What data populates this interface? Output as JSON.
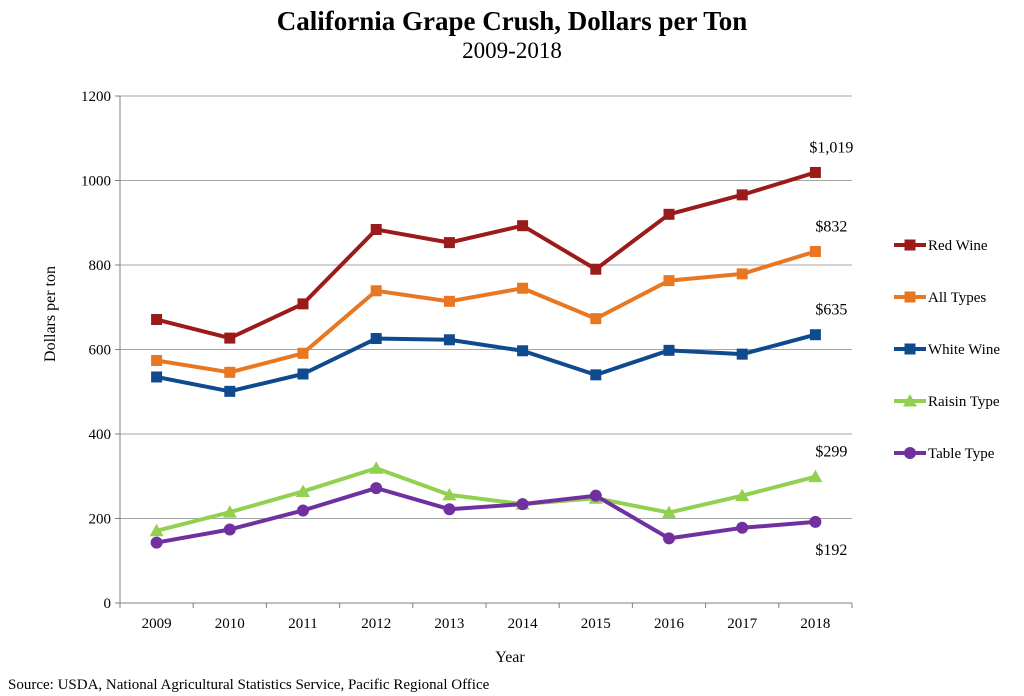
{
  "chart_data": {
    "type": "line",
    "title": "California Grape Crush, Dollars per Ton",
    "subtitle": "2009-2018",
    "xlabel": "Year",
    "ylabel": "Dollars per ton",
    "ylim": [
      0,
      1200
    ],
    "yticks": [
      0,
      200,
      400,
      600,
      800,
      1000,
      1200
    ],
    "grid": true,
    "legend_position": "right",
    "categories": [
      "2009",
      "2010",
      "2011",
      "2012",
      "2013",
      "2014",
      "2015",
      "2016",
      "2017",
      "2018"
    ],
    "series": [
      {
        "name": "Red Wine",
        "color": "#9b1b1b",
        "marker": "square",
        "values": [
          671,
          627,
          708,
          884,
          853,
          893,
          790,
          920,
          966,
          1019
        ]
      },
      {
        "name": "All Types",
        "color": "#e87722",
        "marker": "square",
        "values": [
          574,
          546,
          591,
          739,
          714,
          745,
          673,
          763,
          779,
          832
        ]
      },
      {
        "name": "White Wine",
        "color": "#0f4a8e",
        "marker": "square",
        "values": [
          535,
          501,
          542,
          626,
          623,
          597,
          540,
          598,
          589,
          635
        ]
      },
      {
        "name": "Raisin Type",
        "color": "#92d050",
        "marker": "triangle",
        "values": [
          171,
          215,
          264,
          319,
          256,
          234,
          248,
          214,
          254,
          299
        ]
      },
      {
        "name": "Table Type",
        "color": "#7030a0",
        "marker": "circle",
        "values": [
          143,
          174,
          219,
          272,
          222,
          234,
          254,
          153,
          178,
          192
        ]
      }
    ],
    "annotations": [
      {
        "text": "$1,019",
        "series": "Red Wine",
        "category": "2018",
        "position": "above"
      },
      {
        "text": "$832",
        "series": "All Types",
        "category": "2018",
        "position": "above"
      },
      {
        "text": "$635",
        "series": "White Wine",
        "category": "2018",
        "position": "above"
      },
      {
        "text": "$299",
        "series": "Raisin Type",
        "category": "2018",
        "position": "above"
      },
      {
        "text": "$192",
        "series": "Table Type",
        "category": "2018",
        "position": "below"
      }
    ]
  },
  "source": "Source: USDA, National Agricultural Statistics Service, Pacific Regional Office"
}
